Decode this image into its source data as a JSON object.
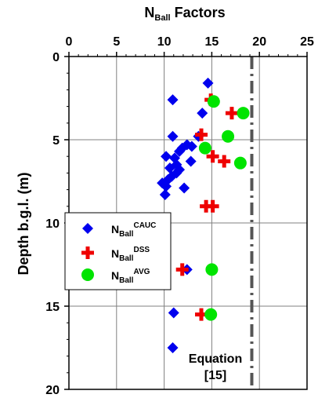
{
  "chart_data": {
    "type": "scatter",
    "title": "N",
    "title_sub": "Ball",
    "title_rest": " Factors",
    "ylabel": "Depth b.g.l. (m)",
    "xlim": [
      0,
      25
    ],
    "ylim": [
      0,
      20
    ],
    "y_inverted": true,
    "x_axis_position": "top",
    "x_ticks": [
      0,
      5,
      10,
      15,
      20,
      25
    ],
    "y_ticks": [
      0,
      5,
      10,
      15,
      20
    ],
    "grid": true,
    "legend_position": "left-middle",
    "series": [
      {
        "name": "CAUC",
        "label_main": "N",
        "label_sub": "Ball",
        "label_sup": "CAUC",
        "marker": "diamond",
        "color": "#0000ee",
        "points": [
          {
            "x": 14.6,
            "y": 1.6
          },
          {
            "x": 10.9,
            "y": 2.6
          },
          {
            "x": 14.0,
            "y": 3.4
          },
          {
            "x": 10.9,
            "y": 4.8
          },
          {
            "x": 13.6,
            "y": 4.8
          },
          {
            "x": 12.4,
            "y": 5.3
          },
          {
            "x": 11.9,
            "y": 5.5
          },
          {
            "x": 12.9,
            "y": 5.4
          },
          {
            "x": 11.6,
            "y": 5.7
          },
          {
            "x": 10.2,
            "y": 6.0
          },
          {
            "x": 11.1,
            "y": 6.1
          },
          {
            "x": 12.8,
            "y": 6.3
          },
          {
            "x": 11.3,
            "y": 6.5
          },
          {
            "x": 11.6,
            "y": 6.8
          },
          {
            "x": 10.6,
            "y": 6.7
          },
          {
            "x": 11.3,
            "y": 7.0
          },
          {
            "x": 10.8,
            "y": 7.2
          },
          {
            "x": 10.4,
            "y": 7.4
          },
          {
            "x": 9.8,
            "y": 7.6
          },
          {
            "x": 10.2,
            "y": 7.8
          },
          {
            "x": 12.1,
            "y": 7.9
          },
          {
            "x": 10.1,
            "y": 8.3
          },
          {
            "x": 12.4,
            "y": 12.8
          },
          {
            "x": 11.0,
            "y": 15.4
          },
          {
            "x": 10.9,
            "y": 17.5
          }
        ]
      },
      {
        "name": "DSS",
        "label_main": "N",
        "label_sub": "Ball",
        "label_sup": "DSS",
        "marker": "cross",
        "color": "#ee0000",
        "points": [
          {
            "x": 14.9,
            "y": 2.6
          },
          {
            "x": 17.1,
            "y": 3.4
          },
          {
            "x": 13.9,
            "y": 4.7
          },
          {
            "x": 15.1,
            "y": 6.0
          },
          {
            "x": 16.3,
            "y": 6.3
          },
          {
            "x": 14.4,
            "y": 9.0
          },
          {
            "x": 15.1,
            "y": 9.0
          },
          {
            "x": 11.9,
            "y": 12.8
          },
          {
            "x": 13.9,
            "y": 15.5
          }
        ]
      },
      {
        "name": "AVG",
        "label_main": "N",
        "label_sub": "Ball",
        "label_sup": "AVG",
        "marker": "circle",
        "color": "#00e400",
        "points": [
          {
            "x": 15.2,
            "y": 2.7
          },
          {
            "x": 18.3,
            "y": 3.4
          },
          {
            "x": 16.7,
            "y": 4.8
          },
          {
            "x": 14.3,
            "y": 5.5
          },
          {
            "x": 18.0,
            "y": 6.4
          },
          {
            "x": 15.0,
            "y": 12.8
          },
          {
            "x": 14.9,
            "y": 15.5
          }
        ]
      }
    ],
    "reference_line": {
      "label_line1": "Equation",
      "label_line2": "[15]",
      "style": "dash-dot",
      "color": "#555555",
      "points": [
        {
          "x": 19.2,
          "y": 0
        },
        {
          "x": 19.2,
          "y": 20
        }
      ]
    }
  }
}
